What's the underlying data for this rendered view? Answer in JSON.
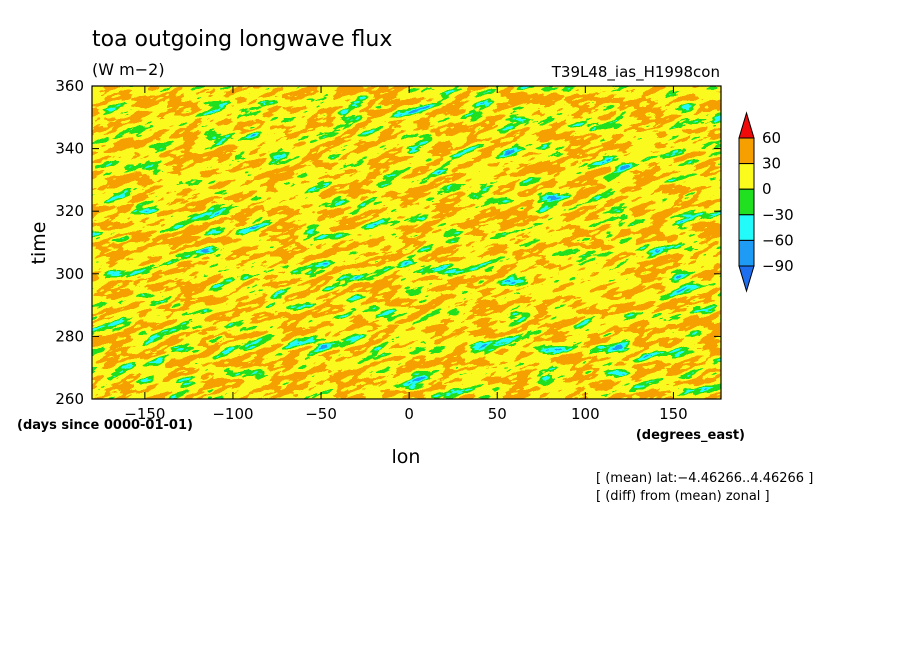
{
  "chart_data": {
    "type": "heatmap",
    "title": "toa outgoing longwave flux",
    "units": "(W m−2)",
    "run_label": "T39L48_ias_H1998con",
    "xlabel": "lon",
    "xunits": "(degrees_east)",
    "ylabel": "time",
    "yunits": "(days since 0000-01-01)",
    "xlim": [
      -180,
      177
    ],
    "ylim": [
      260,
      360
    ],
    "xticks": [
      -150,
      -100,
      -50,
      0,
      50,
      100,
      150
    ],
    "yticks": [
      260,
      280,
      300,
      320,
      340,
      360
    ],
    "xtick_labels": [
      "−150",
      "−100",
      "−50",
      "0",
      "50",
      "100",
      "150"
    ],
    "ytick_labels": [
      "260",
      "280",
      "300",
      "320",
      "340",
      "360"
    ],
    "notes": [
      "[ (mean) lat:−4.46266..4.46266 ]",
      "[ (diff) from (mean) zonal ]"
    ],
    "colorbar": {
      "levels": [
        -90,
        -60,
        -30,
        0,
        30,
        60
      ],
      "level_labels": [
        "−90",
        "−60",
        "−30",
        "0",
        "30",
        "60"
      ],
      "colors": [
        "#1d6ff0",
        "#1e9bf5",
        "#23fbfb",
        "#20e020",
        "#fbfb1e",
        "#f5a000",
        "#f00a0a"
      ],
      "extend": "both"
    }
  }
}
